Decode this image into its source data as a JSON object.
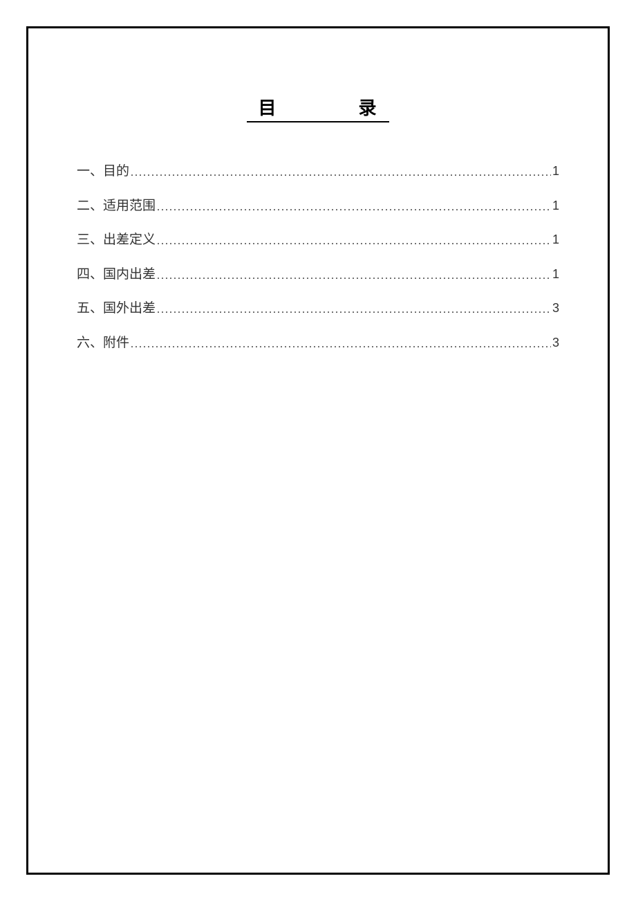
{
  "title_char_1": "目",
  "title_spacer": "          ",
  "title_char_2": "录",
  "colors": {
    "page_bg": "#ffffff",
    "frame_border": "#000000",
    "text": "#333333",
    "title_text": "#000000"
  },
  "fonts": {
    "title_size_pt": 20,
    "toc_size_pt": 14
  },
  "toc": [
    {
      "label": "一、目的",
      "page": "1"
    },
    {
      "label": "二、适用范围",
      "page": "1"
    },
    {
      "label": "三、出差定义",
      "page": "1"
    },
    {
      "label": "四、国内出差",
      "page": "1"
    },
    {
      "label": "五、国外出差",
      "page": "3"
    },
    {
      "label": "六、附件",
      "page": "3"
    }
  ],
  "dot_leader": "........................................................................................................................................................................................"
}
